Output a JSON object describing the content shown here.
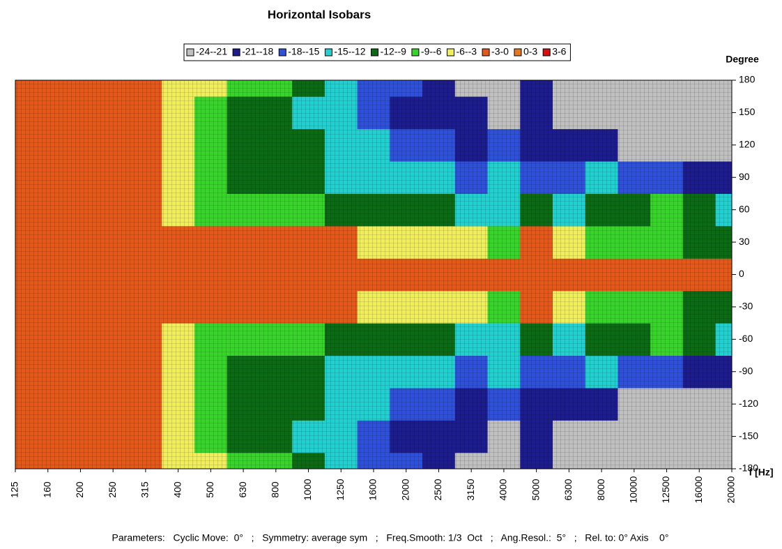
{
  "chart_data": {
    "type": "heatmap",
    "title": "Horizontal Isobars",
    "y_axis_label": "Degree",
    "x_axis_label": "f [Hz]",
    "footer": "Parameters:   Cyclic Move:  0°   ;   Symmetry: average sym   ;   Freq.Smooth: 1/3  Oct   ;   Ang.Resol.:  5°   ;   Rel. to: 0° Axis    0°",
    "levels": [
      {
        "label": "-24--21",
        "min": -24,
        "max": -21,
        "color": "#c0c0c0"
      },
      {
        "label": "-21--18",
        "min": -21,
        "max": -18,
        "color": "#1c1c8e"
      },
      {
        "label": "-18--15",
        "min": -18,
        "max": -15,
        "color": "#2f50d8"
      },
      {
        "label": "-15--12",
        "min": -15,
        "max": -12,
        "color": "#22d0d0"
      },
      {
        "label": "-12--9",
        "min": -12,
        "max": -9,
        "color": "#0b6a14"
      },
      {
        "label": "-9--6",
        "min": -9,
        "max": -6,
        "color": "#38d42c"
      },
      {
        "label": "-6--3",
        "min": -6,
        "max": -3,
        "color": "#f0ee5c"
      },
      {
        "label": "-3-0",
        "min": -3,
        "max": 0,
        "color": "#e4581a"
      },
      {
        "label": "0-3",
        "min": 0,
        "max": 3,
        "color": "#e8781e"
      },
      {
        "label": "3-6",
        "min": 3,
        "max": 6,
        "color": "#d61010"
      }
    ],
    "categories": [
      "125",
      "160",
      "200",
      "250",
      "315",
      "400",
      "500",
      "630",
      "800",
      "1000",
      "1250",
      "1600",
      "2000",
      "2500",
      "3150",
      "4000",
      "5000",
      "6300",
      "8000",
      "10000",
      "12500",
      "16000",
      "20000"
    ],
    "ylim": [
      -180,
      180
    ],
    "yticks": [
      -180,
      -150,
      -120,
      -90,
      -60,
      -30,
      0,
      30,
      60,
      90,
      120,
      150,
      180
    ],
    "z": [
      [
        -1.5,
        -1.5,
        -1.5,
        -1.5,
        -1.5,
        -4,
        -6,
        -8,
        -9,
        -12,
        -13,
        -16,
        -18,
        -19,
        -22,
        -22,
        -19,
        -22,
        -22,
        -22,
        -22,
        -22,
        -22
      ],
      [
        -1.5,
        -1.5,
        -1.5,
        -1.5,
        -1.5,
        -4,
        -7,
        -10,
        -11,
        -13,
        -15,
        -18,
        -19,
        -20,
        -19,
        -22,
        -19,
        -22,
        -22,
        -22,
        -22,
        -22,
        -22
      ],
      [
        -1.5,
        -1.5,
        -1.5,
        -1.5,
        -2.5,
        -5,
        -8,
        -10,
        -11,
        -12,
        -13,
        -14,
        -16,
        -17,
        -19,
        -18,
        -19,
        -19,
        -19,
        -22,
        -22,
        -22,
        -22
      ],
      [
        -1.5,
        -1.5,
        -1.5,
        -1.5,
        -2,
        -5,
        -9,
        -11,
        -11,
        -12,
        -13,
        -14,
        -14,
        -15,
        -17,
        -13,
        -16,
        -17,
        -14,
        -17,
        -17,
        -20,
        -19
      ],
      [
        -1.5,
        -1.5,
        -1.5,
        -1.5,
        -1.5,
        -4,
        -7,
        -8,
        -9,
        -9,
        -10,
        -10,
        -11,
        -12,
        -13,
        -14,
        -11,
        -13,
        -10,
        -11,
        -7,
        -12,
        -14
      ],
      [
        -1.5,
        -1.5,
        -1.5,
        -1.5,
        -1.5,
        -1.5,
        -1.5,
        -1.5,
        -1.5,
        -1.5,
        -2,
        -3.5,
        -4,
        -4.5,
        -5,
        -7,
        -2,
        -4,
        -8,
        -7,
        -7,
        -10,
        -11
      ],
      [
        -1.5,
        -1.5,
        -1.5,
        -1.5,
        -1.5,
        -1.5,
        -1.5,
        -1.5,
        -1.5,
        -1.5,
        -1.5,
        -1.5,
        -1.5,
        -1.5,
        -1.5,
        -1.5,
        -1.5,
        -1.5,
        -1.5,
        -1.5,
        -1.5,
        -1.5,
        -1.5
      ],
      [
        -1.5,
        -1.5,
        -1.5,
        -1.5,
        -1.5,
        -1.5,
        -1.5,
        -1.5,
        -1.5,
        -1.5,
        -2,
        -3.5,
        -4,
        -4.5,
        -5,
        -7,
        -2,
        -4,
        -8,
        -7,
        -7,
        -10,
        -11
      ],
      [
        -1.5,
        -1.5,
        -1.5,
        -1.5,
        -1.5,
        -4,
        -7,
        -8,
        -9,
        -9,
        -10,
        -10,
        -11,
        -12,
        -13,
        -14,
        -11,
        -13,
        -10,
        -11,
        -7,
        -12,
        -14
      ],
      [
        -1.5,
        -1.5,
        -1.5,
        -1.5,
        -2,
        -5,
        -9,
        -11,
        -11,
        -12,
        -13,
        -14,
        -14,
        -15,
        -17,
        -13,
        -16,
        -17,
        -14,
        -17,
        -17,
        -20,
        -19
      ],
      [
        -1.5,
        -1.5,
        -1.5,
        -1.5,
        -2.5,
        -5,
        -8,
        -10,
        -11,
        -12,
        -13,
        -14,
        -16,
        -17,
        -19,
        -18,
        -19,
        -19,
        -19,
        -22,
        -22,
        -22,
        -22
      ],
      [
        -1.5,
        -1.5,
        -1.5,
        -1.5,
        -1.5,
        -4,
        -7,
        -10,
        -11,
        -13,
        -15,
        -18,
        -19,
        -20,
        -19,
        -22,
        -19,
        -22,
        -22,
        -22,
        -22,
        -22,
        -22
      ],
      [
        -1.5,
        -1.5,
        -1.5,
        -1.5,
        -1.5,
        -4,
        -6,
        -8,
        -9,
        -12,
        -13,
        -16,
        -18,
        -19,
        -22,
        -22,
        -19,
        -22,
        -22,
        -22,
        -22,
        -22,
        -22
      ]
    ]
  }
}
